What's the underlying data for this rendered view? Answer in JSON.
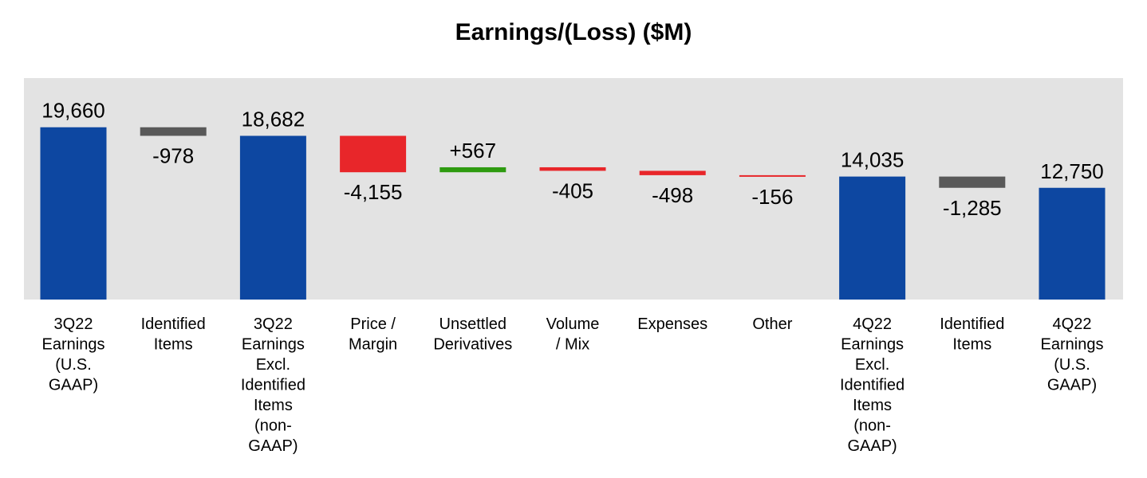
{
  "chart_data": {
    "type": "bar",
    "subtype": "waterfall",
    "title": "Earnings/(Loss) ($M)",
    "xlabel": "",
    "ylabel": "",
    "grid": false,
    "legend": "none",
    "background_color": "#e3e3e3",
    "colors": {
      "total": "#0d47a1",
      "identified": "#595959",
      "negative": "#e8262a",
      "positive": "#2e9b10"
    },
    "bars": [
      {
        "category": [
          "3Q22",
          "Earnings",
          "(U.S.",
          "GAAP)"
        ],
        "kind": "total",
        "value": 19660,
        "label": "19,660"
      },
      {
        "category": [
          "Identified",
          "Items"
        ],
        "kind": "identified",
        "value": -978,
        "label": "-978"
      },
      {
        "category": [
          "3Q22",
          "Earnings",
          "Excl.",
          "Identified",
          "Items",
          "(non-",
          "GAAP)"
        ],
        "kind": "total",
        "value": 18682,
        "label": "18,682"
      },
      {
        "category": [
          "Price /",
          "Margin"
        ],
        "kind": "negative",
        "value": -4155,
        "label": "-4,155"
      },
      {
        "category": [
          "Unsettled",
          "Derivatives"
        ],
        "kind": "positive",
        "value": 567,
        "label": "+567"
      },
      {
        "category": [
          "Volume",
          "/ Mix"
        ],
        "kind": "negative",
        "value": -405,
        "label": "-405"
      },
      {
        "category": [
          "Expenses"
        ],
        "kind": "negative",
        "value": -498,
        "label": "-498"
      },
      {
        "category": [
          "Other"
        ],
        "kind": "negative",
        "value": -156,
        "label": "-156"
      },
      {
        "category": [
          "4Q22",
          "Earnings",
          "Excl.",
          "Identified",
          "Items",
          "(non-",
          "GAAP)"
        ],
        "kind": "total",
        "value": 14035,
        "label": "14,035"
      },
      {
        "category": [
          "Identified",
          "Items"
        ],
        "kind": "identified",
        "value": -1285,
        "label": "-1,285"
      },
      {
        "category": [
          "4Q22",
          "Earnings",
          "(U.S.",
          "GAAP)"
        ],
        "kind": "total",
        "value": 12750,
        "label": "12,750"
      }
    ]
  }
}
